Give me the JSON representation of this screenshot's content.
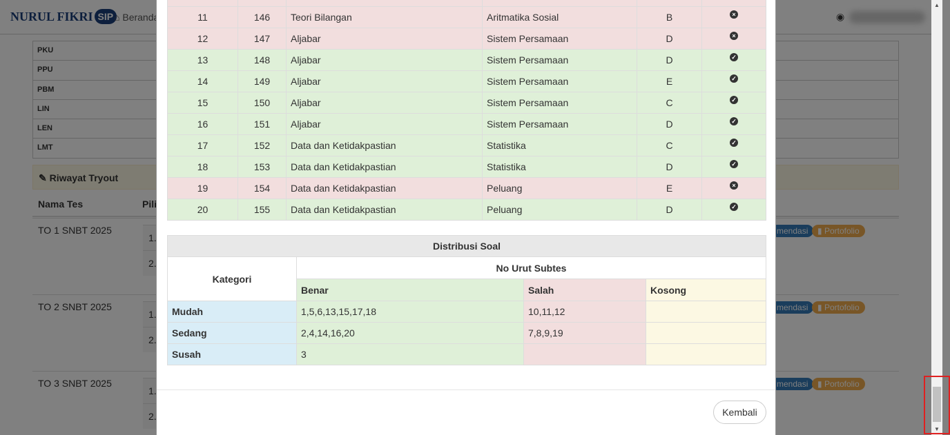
{
  "nav": {
    "logo_text": "NURUL FIKRI",
    "logo_badge": "SIP",
    "home_label": "Beranda",
    "user_icon": "user-circle-icon"
  },
  "background": {
    "subtests": [
      "PKU",
      "PPU",
      "PBM",
      "LIN",
      "LEN",
      "LMT"
    ],
    "panel_title": "Riwayat Tryout",
    "col_name": "Nama Tes",
    "col_pilihan": "Pili",
    "tests": [
      {
        "name": "TO 1 SNBT 2025"
      },
      {
        "name": "TO 2 SNBT 2025"
      },
      {
        "name": "TO 3 SNBT 2025"
      }
    ],
    "sub_items": [
      "1.",
      "2."
    ],
    "btn_rekomendasi": "mendasi",
    "btn_portofolio": "Portofolio"
  },
  "answers": [
    {
      "no": "11",
      "soal": "146",
      "topic": "Teori Bilangan",
      "sub": "Aritmatika Sosial",
      "key": "B",
      "correct": false
    },
    {
      "no": "12",
      "soal": "147",
      "topic": "Aljabar",
      "sub": "Sistem Persamaan",
      "key": "D",
      "correct": false
    },
    {
      "no": "13",
      "soal": "148",
      "topic": "Aljabar",
      "sub": "Sistem Persamaan",
      "key": "D",
      "correct": true
    },
    {
      "no": "14",
      "soal": "149",
      "topic": "Aljabar",
      "sub": "Sistem Persamaan",
      "key": "E",
      "correct": true
    },
    {
      "no": "15",
      "soal": "150",
      "topic": "Aljabar",
      "sub": "Sistem Persamaan",
      "key": "C",
      "correct": true
    },
    {
      "no": "16",
      "soal": "151",
      "topic": "Aljabar",
      "sub": "Sistem Persamaan",
      "key": "D",
      "correct": true
    },
    {
      "no": "17",
      "soal": "152",
      "topic": "Data dan Ketidakpastian",
      "sub": "Statistika",
      "key": "C",
      "correct": true
    },
    {
      "no": "18",
      "soal": "153",
      "topic": "Data dan Ketidakpastian",
      "sub": "Statistika",
      "key": "D",
      "correct": true
    },
    {
      "no": "19",
      "soal": "154",
      "topic": "Data dan Ketidakpastian",
      "sub": "Peluang",
      "key": "E",
      "correct": false
    },
    {
      "no": "20",
      "soal": "155",
      "topic": "Data dan Ketidakpastian",
      "sub": "Peluang",
      "key": "D",
      "correct": true
    }
  ],
  "distribution": {
    "title": "Distribusi Soal",
    "kategori": "Kategori",
    "group": "No Urut Subtes",
    "cols": [
      "Benar",
      "Salah",
      "Kosong"
    ],
    "rows": [
      {
        "label": "Mudah",
        "benar": "1,5,6,13,15,17,18",
        "salah": "10,11,12",
        "kosong": ""
      },
      {
        "label": "Sedang",
        "benar": "2,4,14,16,20",
        "salah": "7,8,9,19",
        "kosong": ""
      },
      {
        "label": "Susah",
        "benar": "3",
        "salah": "",
        "kosong": ""
      }
    ]
  },
  "footer": {
    "close_label": "Kembali"
  },
  "colors": {
    "correct_row": "#dff0d8",
    "wrong_row": "#f2dede",
    "empty": "#fcf8e3",
    "category": "#d9edf7"
  }
}
